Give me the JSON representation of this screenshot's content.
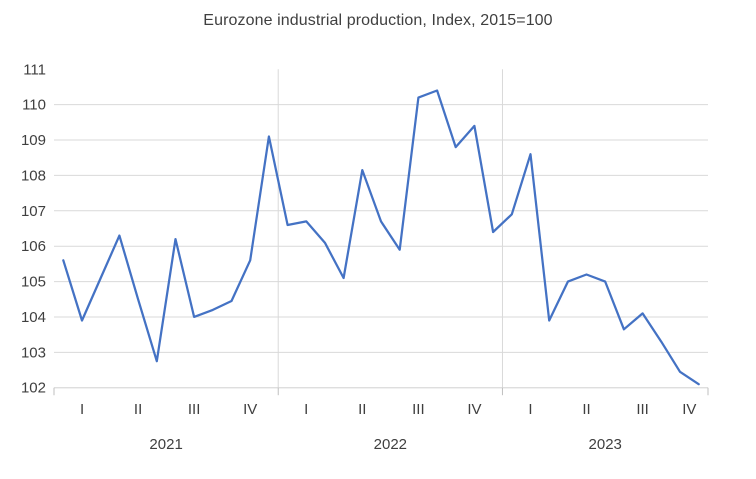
{
  "chart_data": {
    "type": "line",
    "title": "Eurozone industrial production, Index, 2015=100",
    "frequency": "monthly",
    "period_start": "2021-01",
    "period_end": "2023-11",
    "series": [
      {
        "name": "Eurozone industrial production index (2015=100)",
        "values": [
          105.6,
          103.9,
          105.1,
          106.3,
          104.5,
          102.75,
          106.2,
          104.0,
          104.2,
          104.45,
          105.6,
          109.1,
          106.6,
          106.7,
          106.1,
          105.1,
          108.15,
          106.7,
          105.9,
          110.2,
          110.4,
          108.8,
          109.4,
          106.4,
          106.9,
          108.6,
          103.9,
          105.0,
          105.2,
          105.0,
          103.65,
          104.1,
          103.3,
          102.45,
          102.1
        ]
      }
    ],
    "y_axis": {
      "min": 102,
      "max": 111,
      "step": 1,
      "tick_labels": [
        "102",
        "103",
        "104",
        "105",
        "106",
        "107",
        "108",
        "109",
        "110",
        "111"
      ]
    },
    "x_axis": {
      "quarter_labels": [
        "I",
        "II",
        "III",
        "IV",
        "I",
        "II",
        "III",
        "IV",
        "I",
        "II",
        "III",
        "IV"
      ],
      "months_per_quarter": [
        3,
        3,
        3,
        3,
        3,
        3,
        3,
        3,
        3,
        3,
        3,
        2
      ],
      "years": [
        {
          "label": "2021",
          "months": 12
        },
        {
          "label": "2022",
          "months": 12
        },
        {
          "label": "2023",
          "months": 11
        }
      ]
    },
    "legend": "none",
    "grid": "horizontal-major + year separators",
    "colors": {
      "line": "#4472C4",
      "gridline": "#D9D9D9",
      "axis_tick": "#BFBFBF",
      "text": "#3F3F3F"
    }
  }
}
